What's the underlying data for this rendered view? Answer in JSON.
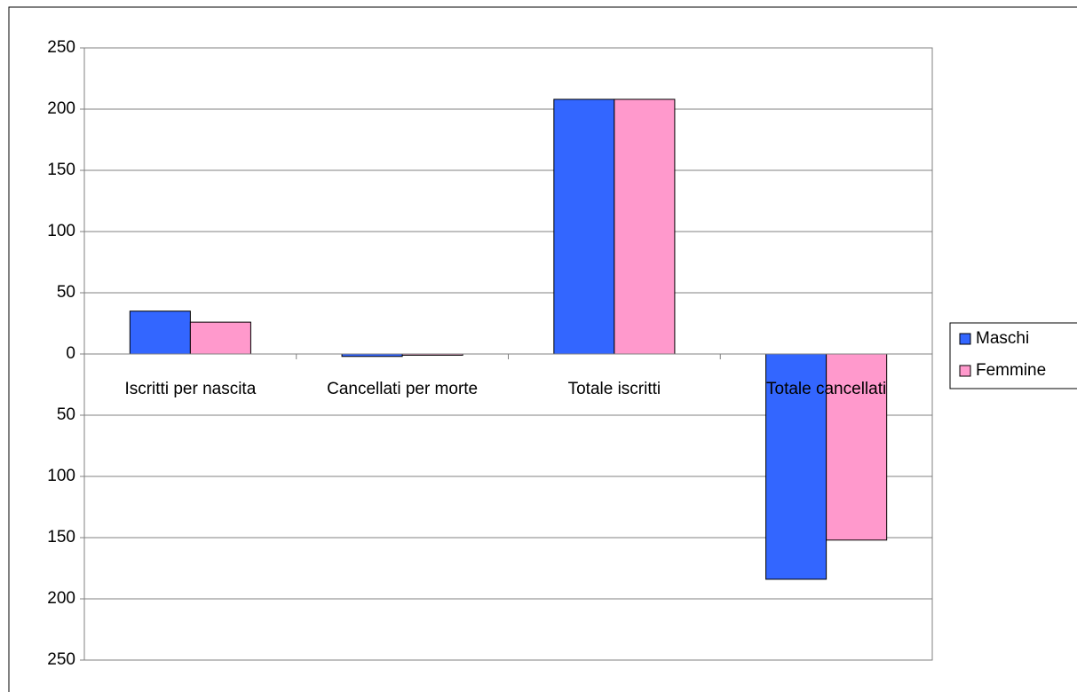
{
  "chart_data": {
    "type": "bar",
    "categories": [
      "Iscritti per nascita",
      "Cancellati per morte",
      "Totale iscritti",
      "Totale cancellati"
    ],
    "series": [
      {
        "name": "Maschi",
        "color": "#3366ff",
        "values": [
          35,
          -2,
          208,
          -184
        ]
      },
      {
        "name": "Femmine",
        "color": "#ff99cc",
        "values": [
          26,
          -1,
          208,
          -152
        ]
      }
    ],
    "ylim": [
      -250,
      250
    ],
    "yticks": [
      {
        "value": -250,
        "label": "250"
      },
      {
        "value": -200,
        "label": "200"
      },
      {
        "value": -150,
        "label": "150"
      },
      {
        "value": -100,
        "label": "100"
      },
      {
        "value": -50,
        "label": "50"
      },
      0,
      50,
      100,
      150,
      200,
      250
    ],
    "negative_tick_color": "#ff0000",
    "grid": true,
    "legend": "right"
  }
}
